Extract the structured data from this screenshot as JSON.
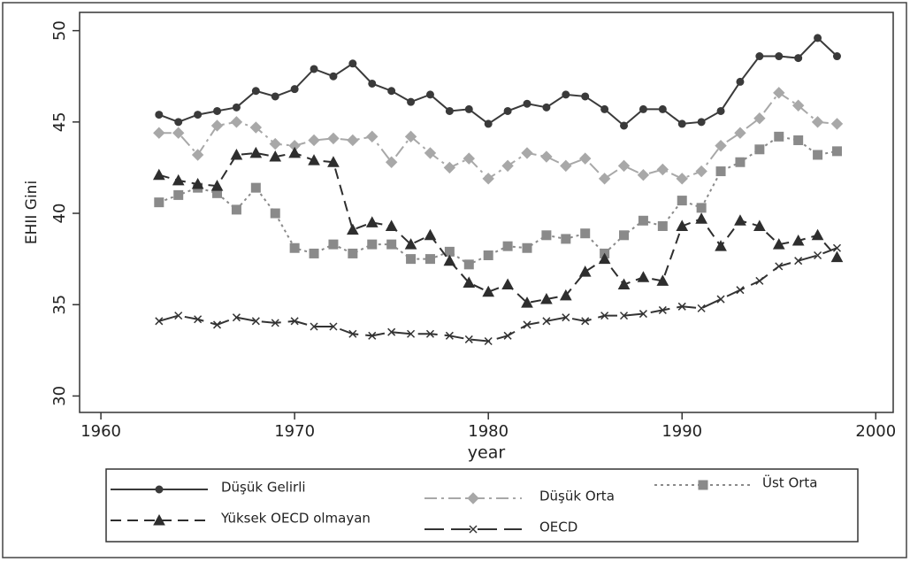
{
  "chart_data": {
    "type": "line",
    "x_label": "year",
    "y_label": "EHII Gini",
    "x": [
      1963,
      1964,
      1965,
      1966,
      1967,
      1968,
      1969,
      1970,
      1971,
      1972,
      1973,
      1974,
      1975,
      1976,
      1977,
      1978,
      1979,
      1980,
      1981,
      1982,
      1983,
      1984,
      1985,
      1986,
      1987,
      1988,
      1989,
      1990,
      1991,
      1992,
      1993,
      1994,
      1995,
      1996,
      1997,
      1998
    ],
    "xlim": [
      1958.9,
      2000.9
    ],
    "xticks": [
      1960,
      1970,
      1980,
      1990,
      2000
    ],
    "ylim": [
      29.1,
      51
    ],
    "yticks": [
      30,
      35,
      40,
      45,
      50
    ],
    "legend": "bottom",
    "series": [
      {
        "name": "Düşük Gelirli",
        "color": "#3a3a3a",
        "dash": "solid",
        "marker": "circle",
        "values": [
          45.4,
          45.0,
          45.4,
          45.6,
          45.8,
          46.7,
          46.4,
          46.8,
          47.9,
          47.5,
          48.2,
          47.1,
          46.7,
          46.1,
          46.5,
          45.6,
          45.7,
          44.9,
          45.6,
          46.0,
          45.8,
          46.5,
          46.4,
          45.7,
          44.8,
          45.7,
          45.7,
          44.9,
          45.0,
          45.6,
          47.2,
          48.6,
          48.6,
          48.5,
          49.6,
          48.6
        ]
      },
      {
        "name": "Düşük Orta",
        "color": "#a8a8a8",
        "dash": "dashdot",
        "marker": "diamond",
        "values": [
          44.4,
          44.4,
          43.2,
          44.8,
          45.0,
          44.7,
          43.8,
          43.7,
          44.0,
          44.1,
          44.0,
          44.2,
          42.8,
          44.2,
          43.3,
          42.5,
          43.0,
          41.9,
          42.6,
          43.3,
          43.1,
          42.6,
          43.0,
          41.9,
          42.6,
          42.1,
          42.4,
          41.9,
          42.3,
          43.7,
          44.4,
          45.2,
          46.6,
          45.9,
          45.0,
          44.9
        ]
      },
      {
        "name": "Üst Orta",
        "color": "#8a8a8a",
        "dash": "dot",
        "marker": "square",
        "values": [
          40.6,
          41.0,
          41.4,
          41.1,
          40.2,
          41.4,
          40.0,
          38.1,
          37.8,
          38.3,
          37.8,
          38.3,
          38.3,
          37.5,
          37.5,
          37.9,
          37.2,
          37.7,
          38.2,
          38.1,
          38.8,
          38.6,
          38.9,
          37.8,
          38.8,
          39.6,
          39.3,
          40.7,
          40.3,
          42.3,
          42.8,
          43.5,
          44.2,
          44.0,
          43.2,
          43.4
        ]
      },
      {
        "name": "Yüksek OECD olmayan",
        "color": "#2e2e2e",
        "dash": "dash",
        "marker": "triangle",
        "values": [
          42.1,
          41.8,
          41.6,
          41.5,
          43.2,
          43.3,
          43.1,
          43.3,
          42.9,
          42.8,
          39.1,
          39.5,
          39.3,
          38.3,
          38.8,
          37.4,
          36.2,
          35.7,
          36.1,
          35.1,
          35.3,
          35.5,
          36.8,
          37.5,
          36.1,
          36.5,
          36.3,
          39.3,
          39.7,
          38.2,
          39.6,
          39.3,
          38.3,
          38.5,
          38.8,
          37.6
        ]
      },
      {
        "name": "OECD",
        "color": "#333333",
        "dash": "longdash",
        "marker": "x",
        "values": [
          34.1,
          34.4,
          34.2,
          33.9,
          34.3,
          34.1,
          34.0,
          34.1,
          33.8,
          33.8,
          33.4,
          33.3,
          33.5,
          33.4,
          33.4,
          33.3,
          33.1,
          33.0,
          33.3,
          33.9,
          34.1,
          34.3,
          34.1,
          34.4,
          34.4,
          34.5,
          34.7,
          34.9,
          34.8,
          35.3,
          35.8,
          36.3,
          37.1,
          37.4,
          37.7,
          38.1
        ]
      }
    ]
  }
}
